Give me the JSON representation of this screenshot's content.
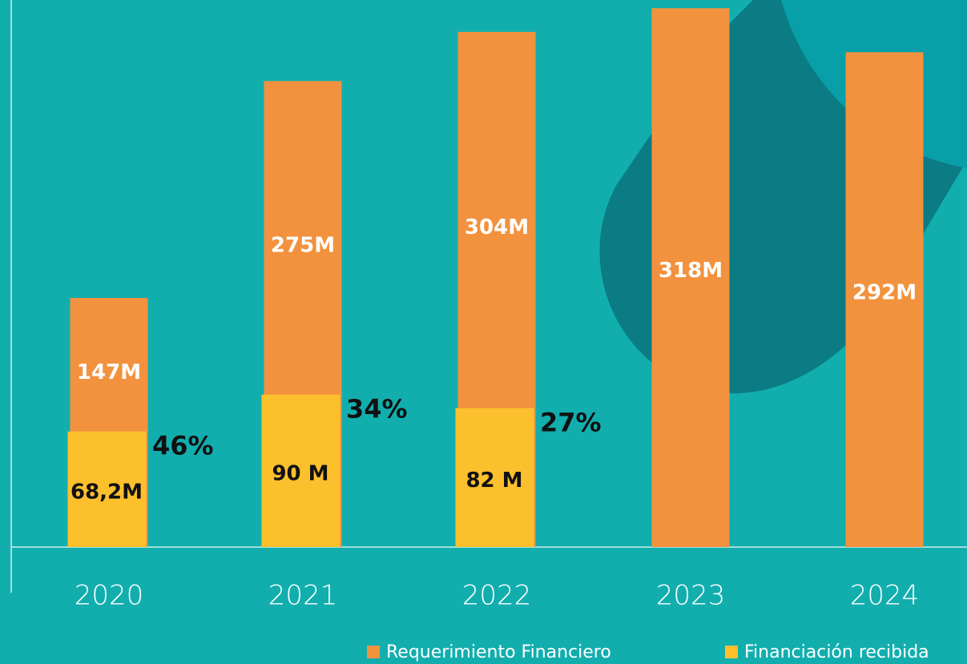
{
  "chart_data": {
    "type": "bar",
    "categories": [
      "2020",
      "2021",
      "2022",
      "2023",
      "2024"
    ],
    "series": [
      {
        "name": "Requerimiento Financiero",
        "color": "#f2923e",
        "values": [
          147,
          275,
          304,
          318,
          292
        ],
        "value_labels": [
          "147M",
          "275M",
          "304M",
          "318M",
          "292M"
        ]
      },
      {
        "name": "Financiación recibida",
        "color": "#fdc02d",
        "values": [
          68.2,
          90,
          82,
          null,
          null
        ],
        "value_labels": [
          "68,2M",
          "90 M",
          "82 M",
          null,
          null
        ]
      }
    ],
    "shares": {
      "values": [
        46,
        34,
        27,
        null,
        null
      ],
      "value_labels": [
        "46%",
        "34%",
        "27%",
        null,
        null
      ]
    },
    "ylim": [
      0,
      320
    ]
  }
}
